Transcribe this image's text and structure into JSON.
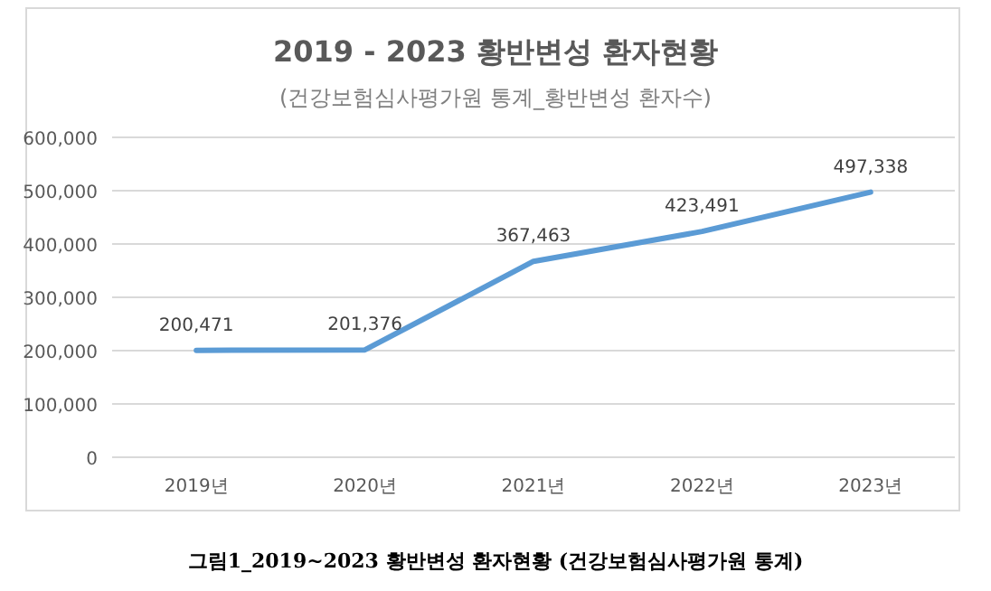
{
  "chart_data": {
    "type": "line",
    "title": "2019 - 2023 황반변성 환자현황",
    "subtitle": "(건강보험심사평가원 통계_황반변성 환자수)",
    "annotations": [
      "그림1_2019~2023 황반변성 환자현황 (건강보험심사평가원 통계)"
    ],
    "categories": [
      "2019년",
      "2020년",
      "2021년",
      "2022년",
      "2023년"
    ],
    "series": [
      {
        "color": "#5b9bd5",
        "values": [
          200471,
          201376,
          367463,
          423491,
          497338
        ],
        "value_labels": [
          "200,471",
          "201,376",
          "367,463",
          "423,491",
          "497,338"
        ]
      }
    ],
    "ylim": [
      0,
      600000
    ],
    "yticks": [
      0,
      {
        "value": 100000,
        "label": "100,000"
      },
      {
        "value": 200000,
        "label": "200,000"
      },
      {
        "value": 300000,
        "label": "300,000"
      },
      {
        "value": 400000,
        "label": "400,000"
      },
      {
        "value": 500000,
        "label": "500,000"
      },
      {
        "value": 600000,
        "label": "600,000"
      }
    ],
    "grid": "y",
    "line_style": "solid"
  }
}
